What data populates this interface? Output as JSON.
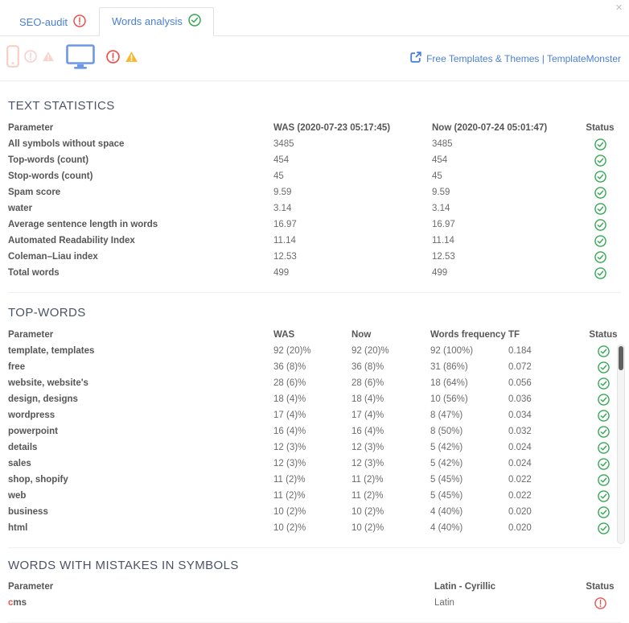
{
  "window": {
    "close_icon": "×"
  },
  "tabs": [
    {
      "label": "SEO-audit",
      "status_icon": "exclamation-circle-icon",
      "active": false
    },
    {
      "label": "Words analysis",
      "status_icon": "check-circle-icon",
      "active": true
    }
  ],
  "toolbar": {
    "device_icons": [
      {
        "name": "mobile-icon",
        "state": "inactive",
        "badges": [
          "exclamation-circle",
          "warning-triangle"
        ]
      },
      {
        "name": "desktop-icon",
        "state": "active",
        "badges": [
          "exclamation-circle",
          "warning-triangle"
        ]
      }
    ],
    "link": {
      "label": "Free Templates & Themes | TemplateMonster",
      "icon": "external-link-icon"
    }
  },
  "colors": {
    "accent_blue": "#4a7fd6",
    "success_green": "#35a853",
    "error_red": "#e8534e",
    "warning_orange": "#f7b731",
    "faded_red": "#f7cfc9",
    "title_slate": "#4a5468"
  },
  "text_statistics": {
    "title": "TEXT STATISTICS",
    "columns": {
      "parameter": "Parameter",
      "was": "WAS (2020-07-23 05:17:45)",
      "now": "Now (2020-07-24 05:01:47)",
      "status": "Status"
    },
    "rows": [
      {
        "param": "All symbols without space",
        "was": "3485",
        "now": "3485",
        "status": "ok"
      },
      {
        "param": "Top-words (count)",
        "was": "454",
        "now": "454",
        "status": "ok"
      },
      {
        "param": "Stop-words (count)",
        "was": "45",
        "now": "45",
        "status": "ok"
      },
      {
        "param": "Spam score",
        "was": "9.59",
        "now": "9.59",
        "status": "ok"
      },
      {
        "param": "water",
        "was": "3.14",
        "now": "3.14",
        "status": "ok"
      },
      {
        "param": "Average sentence length in words",
        "was": "16.97",
        "now": "16.97",
        "status": "ok"
      },
      {
        "param": "Automated Readability Index",
        "was": "11.14",
        "now": "11.14",
        "status": "ok"
      },
      {
        "param": "Coleman–Liau index",
        "was": "12.53",
        "now": "12.53",
        "status": "ok"
      },
      {
        "param": "Total words",
        "was": "499",
        "now": "499",
        "status": "ok"
      }
    ]
  },
  "top_words": {
    "title": "TOP-WORDS",
    "columns": {
      "parameter": "Parameter",
      "was": "WAS",
      "now": "Now",
      "freq": "Words frequency",
      "tf": "TF",
      "status": "Status"
    },
    "rows": [
      {
        "param": "template, templates",
        "was": "92 (20)%",
        "now": "92 (20)%",
        "freq": "92 (100%)",
        "tf": "0.184",
        "status": "ok"
      },
      {
        "param": "free",
        "was": "36 (8)%",
        "now": "36 (8)%",
        "freq": "31 (86%)",
        "tf": "0.072",
        "status": "ok"
      },
      {
        "param": "website, website's",
        "was": "28 (6)%",
        "now": "28 (6)%",
        "freq": "18 (64%)",
        "tf": "0.056",
        "status": "ok"
      },
      {
        "param": "design, designs",
        "was": "18 (4)%",
        "now": "18 (4)%",
        "freq": "10 (56%)",
        "tf": "0.036",
        "status": "ok"
      },
      {
        "param": "wordpress",
        "was": "17 (4)%",
        "now": "17 (4)%",
        "freq": "8 (47%)",
        "tf": "0.034",
        "status": "ok"
      },
      {
        "param": "powerpoint",
        "was": "16 (4)%",
        "now": "16 (4)%",
        "freq": "8 (50%)",
        "tf": "0.032",
        "status": "ok"
      },
      {
        "param": "details",
        "was": "12 (3)%",
        "now": "12 (3)%",
        "freq": "5 (42%)",
        "tf": "0.024",
        "status": "ok"
      },
      {
        "param": "sales",
        "was": "12 (3)%",
        "now": "12 (3)%",
        "freq": "5 (42%)",
        "tf": "0.024",
        "status": "ok"
      },
      {
        "param": "shop, shopify",
        "was": "11 (2)%",
        "now": "11 (2)%",
        "freq": "5 (45%)",
        "tf": "0.022",
        "status": "ok"
      },
      {
        "param": "web",
        "was": "11 (2)%",
        "now": "11 (2)%",
        "freq": "5 (45%)",
        "tf": "0.022",
        "status": "ok"
      },
      {
        "param": "business",
        "was": "10 (2)%",
        "now": "10 (2)%",
        "freq": "4 (40%)",
        "tf": "0.020",
        "status": "ok"
      },
      {
        "param": "html",
        "was": "10 (2)%",
        "now": "10 (2)%",
        "freq": "4 (40%)",
        "tf": "0.020",
        "status": "ok"
      }
    ]
  },
  "mistakes": {
    "title": "WORDS WITH MISTAKES IN SYMBOLS",
    "columns": {
      "parameter": "Parameter",
      "latin": "Latin - Cyrillic",
      "status": "Status"
    },
    "rows": [
      {
        "word_error_part": "c",
        "word_rest": "ms",
        "latin": "Latin",
        "status": "error"
      }
    ]
  }
}
